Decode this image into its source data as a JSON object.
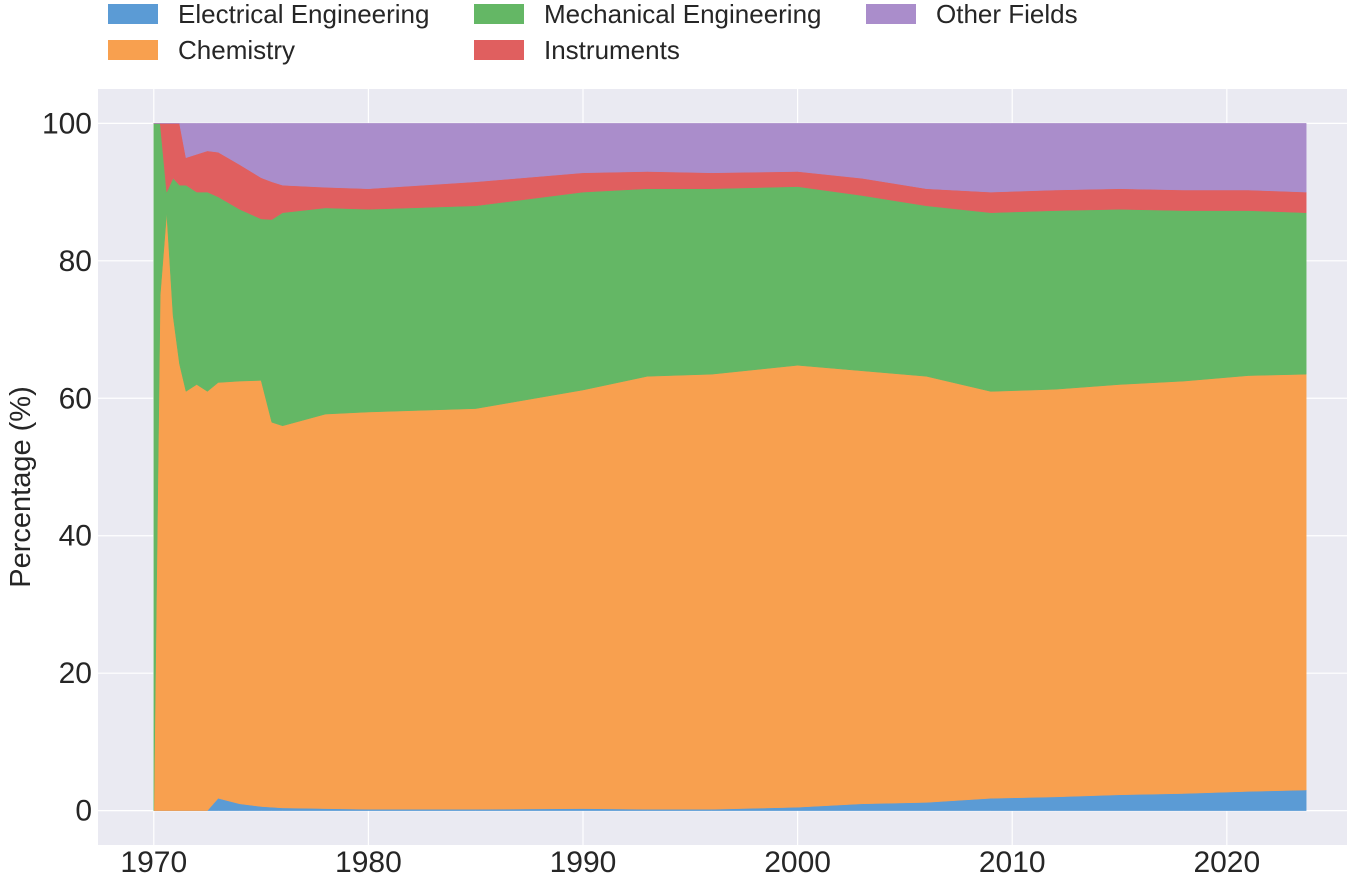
{
  "chart_data": {
    "type": "area",
    "stacked": true,
    "title": "",
    "xlabel": "",
    "ylabel": "Percentage (%)",
    "xlim": [
      1967.4,
      2025.6
    ],
    "ylim": [
      -5,
      105
    ],
    "xticks": [
      1970,
      1980,
      1990,
      2000,
      2010,
      2020
    ],
    "yticks": [
      0,
      20,
      40,
      60,
      80,
      100
    ],
    "legend_position": "top",
    "grid": true,
    "x": [
      1970.0,
      1970.3,
      1970.6,
      1970.9,
      1971.2,
      1971.5,
      1972.0,
      1972.5,
      1973.0,
      1974.0,
      1975.0,
      1975.5,
      1976.0,
      1978.0,
      1980.0,
      1985.0,
      1990.0,
      1993.0,
      1996.0,
      2000.0,
      2003.0,
      2006.0,
      2009.0,
      2012.0,
      2015.0,
      2018.0,
      2021.0,
      2023.7
    ],
    "series": [
      {
        "name": "Electrical Engineering",
        "color": "#5b9bd5",
        "values": [
          0,
          0,
          0,
          0,
          0,
          0,
          0,
          0,
          1.8,
          1.0,
          0.6,
          0.5,
          0.4,
          0.3,
          0.2,
          0.2,
          0.3,
          0.2,
          0.2,
          0.5,
          1.0,
          1.2,
          1.8,
          2.0,
          2.3,
          2.5,
          2.8,
          3.0
        ]
      },
      {
        "name": "Chemistry",
        "color": "#f8a04f",
        "values": [
          0,
          75,
          87,
          72,
          65,
          61,
          62,
          61,
          60.5,
          61.5,
          62,
          56,
          55.6,
          57.4,
          57.8,
          58.3,
          60.9,
          63,
          63.3,
          64.3,
          63,
          62,
          59.2,
          59.3,
          59.7,
          60,
          60.5,
          60.5
        ]
      },
      {
        "name": "Mechanical Engineering",
        "color": "#64b765",
        "values": [
          100,
          25,
          3,
          20,
          26,
          30,
          28,
          29,
          27,
          25,
          23.5,
          29.5,
          31,
          30,
          29.5,
          29.5,
          28.8,
          27.3,
          27,
          26,
          25.5,
          24.8,
          26,
          26,
          25.5,
          24.8,
          24,
          23.5
        ]
      },
      {
        "name": "Instruments",
        "color": "#e05f5f",
        "values": [
          0,
          0,
          10,
          8,
          9,
          4,
          5.5,
          6,
          6.5,
          6.5,
          6,
          5.5,
          4,
          3,
          3,
          3.5,
          2.8,
          2.5,
          2.3,
          2.2,
          2.5,
          2.5,
          3,
          3,
          3,
          3,
          3,
          3
        ]
      },
      {
        "name": "Other Fields",
        "color": "#aa8dcb",
        "values": [
          0,
          0,
          0,
          0,
          0,
          5,
          4.5,
          4,
          4.2,
          6,
          7.9,
          8.5,
          9,
          9.3,
          9.5,
          8.5,
          7.2,
          7,
          7.2,
          7,
          8,
          9.5,
          10,
          9.7,
          9.5,
          9.7,
          9.7,
          10
        ]
      }
    ]
  }
}
